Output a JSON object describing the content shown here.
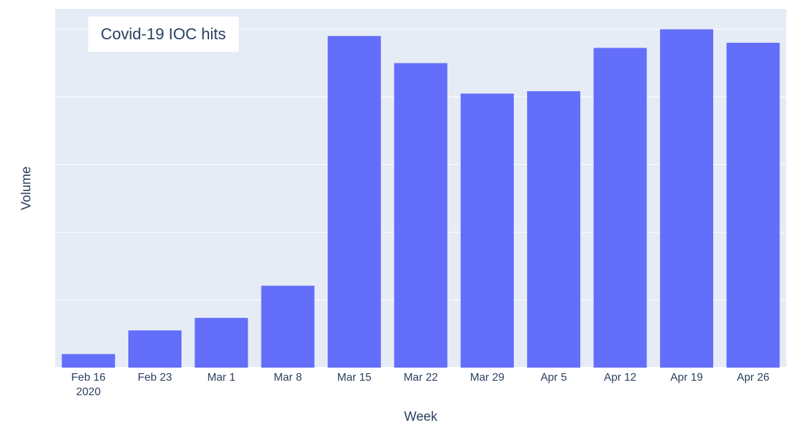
{
  "chart_data": {
    "type": "bar",
    "title": "",
    "xlabel": "Week",
    "ylabel": "Volume",
    "categories": [
      "Feb 16",
      "Feb 23",
      "Mar 1",
      "Mar 8",
      "Mar 15",
      "Mar 22",
      "Mar 29",
      "Apr 5",
      "Apr 12",
      "Apr 19",
      "Apr 26"
    ],
    "category_sublabels": [
      "2020",
      "",
      "",
      "",
      "",
      "",
      "",
      "",
      "",
      "",
      ""
    ],
    "series": [
      {
        "name": "Covid-19 IOC hits",
        "values": [
          4,
          11,
          14.7,
          24.2,
          98,
          90,
          81,
          81.7,
          94.5,
          100,
          96
        ]
      }
    ],
    "ylim": [
      0,
      106
    ],
    "gridlines": [
      0,
      20,
      40,
      60,
      80,
      100
    ],
    "grid": true,
    "y_tick_labels_visible": false,
    "legend": "top-left",
    "colors": {
      "bar": "#636efa",
      "plot_bg": "#e5ecf6",
      "grid": "#ffffff",
      "text": "#2a3f5f"
    }
  }
}
